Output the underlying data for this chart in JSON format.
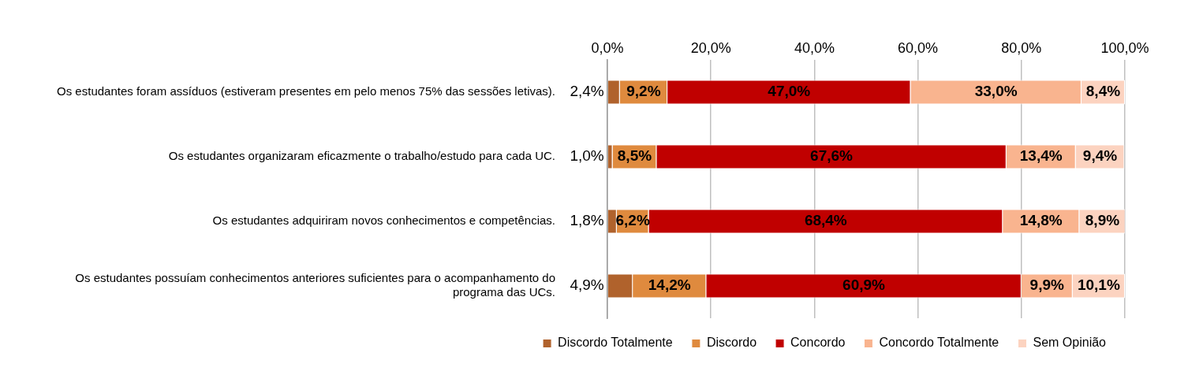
{
  "chart_data": {
    "type": "bar",
    "orientation": "horizontal",
    "stacked": true,
    "categories": [
      "Os estudantes foram assíduos (estiveram presentes em pelo menos 75% das sessões letivas).",
      "Os estudantes organizaram eficazmente o trabalho/estudo para cada UC.",
      "Os estudantes adquiriram novos conhecimentos e competências.",
      "Os estudantes possuíam conhecimentos anteriores suficientes para o acompanhamento do programa das UCs."
    ],
    "series": [
      {
        "name": "Discordo Totalmente",
        "color": "#b0622c",
        "values": [
          2.4,
          1.0,
          1.8,
          4.9
        ],
        "value_labels": [
          "2,4%",
          "1,0%",
          "1,8%",
          "4,9%"
        ]
      },
      {
        "name": "Discordo",
        "color": "#df8a3e",
        "values": [
          9.2,
          8.5,
          6.2,
          14.2
        ],
        "value_labels": [
          "9,2%",
          "8,5%",
          "6,2%",
          "14,2%"
        ]
      },
      {
        "name": "Concordo",
        "color": "#c00000",
        "values": [
          47.0,
          67.6,
          68.4,
          60.9
        ],
        "value_labels": [
          "47,0%",
          "67,6%",
          "68,4%",
          "60,9%"
        ]
      },
      {
        "name": "Concordo Totalmente",
        "color": "#f9b48f",
        "values": [
          33.0,
          13.4,
          14.8,
          9.9
        ],
        "value_labels": [
          "33,0%",
          "13,4%",
          "14,8%",
          "9,9%"
        ]
      },
      {
        "name": "Sem Opinião",
        "color": "#fcd3c0",
        "values": [
          8.4,
          9.4,
          8.9,
          10.1
        ],
        "value_labels": [
          "8,4%",
          "9,4%",
          "8,9%",
          "10,1%"
        ]
      }
    ],
    "xlim": [
      0,
      100
    ],
    "xticks": [
      {
        "value": 0,
        "label": "0,0%"
      },
      {
        "value": 20,
        "label": "20,0%"
      },
      {
        "value": 40,
        "label": "40,0%"
      },
      {
        "value": 60,
        "label": "60,0%"
      },
      {
        "value": 80,
        "label": "80,0%"
      },
      {
        "value": 100,
        "label": "100,0%"
      }
    ],
    "grid": "x",
    "legend": "bottom"
  }
}
